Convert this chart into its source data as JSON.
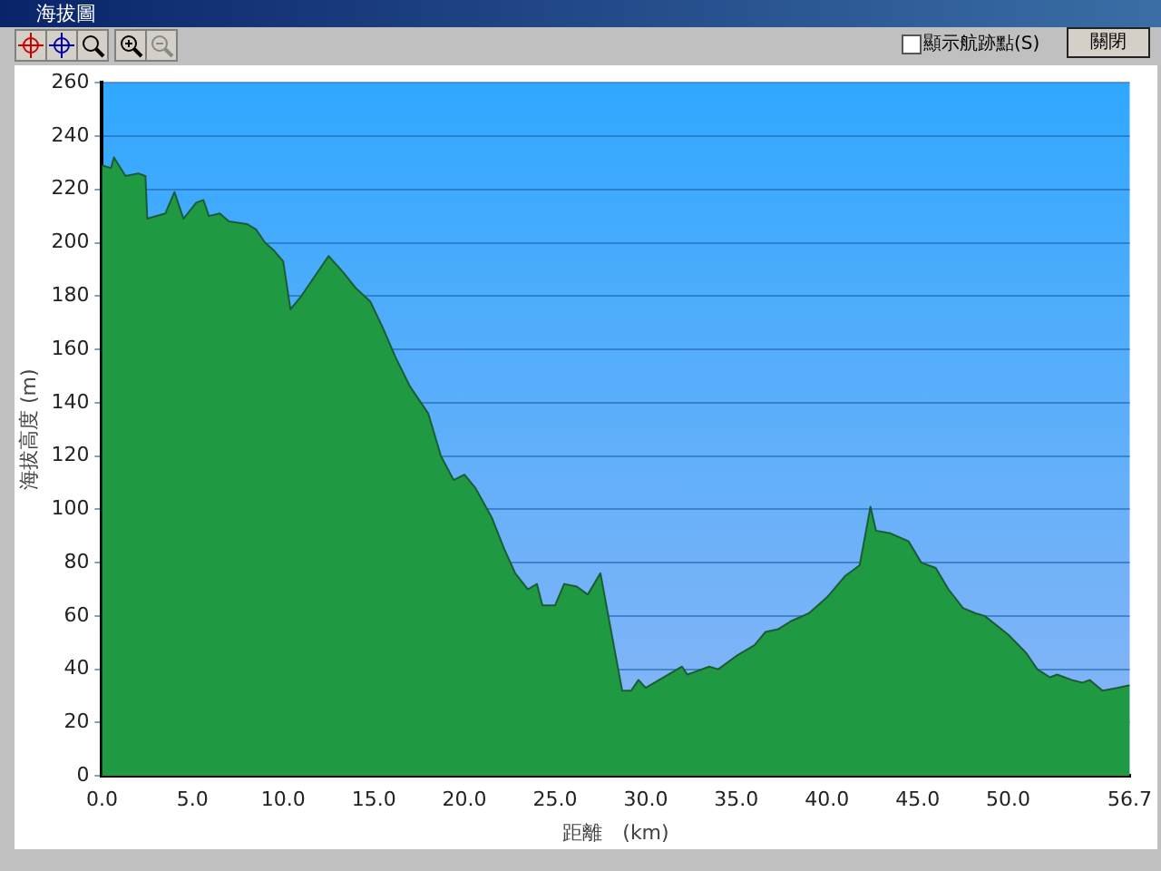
{
  "chart_data": {
    "type": "area",
    "title": "海拔圖",
    "xlabel": "距離　(km)",
    "ylabel": "海拔高度 (m)",
    "annotations": [
      "顯示航跡點(S)",
      "關閉"
    ],
    "x": [
      0,
      0.5,
      0.66,
      1.3,
      2.0,
      2.4,
      2.5,
      3.5,
      4.0,
      4.5,
      5.2,
      5.6,
      5.9,
      6.5,
      7.0,
      8.0,
      8.5,
      9.0,
      9.5,
      10.0,
      10.4,
      11.0,
      11.8,
      12.5,
      13.3,
      14.0,
      14.8,
      15.5,
      16.2,
      17.0,
      17.6,
      18.0,
      18.7,
      19.4,
      20.0,
      20.6,
      21.5,
      22.2,
      22.8,
      23.5,
      24.0,
      24.3,
      25.0,
      25.5,
      26.2,
      26.8,
      27.5,
      28.7,
      29.2,
      29.6,
      30.0,
      31.0,
      32.0,
      32.3,
      33.5,
      34.0,
      35.0,
      36.0,
      36.6,
      37.3,
      38.0,
      39.0,
      40.0,
      41.0,
      41.4,
      41.8,
      42.4,
      42.7,
      43.5,
      44.5,
      45.2,
      46.0,
      46.7,
      47.5,
      48.2,
      48.7,
      50.0,
      51.0,
      51.6,
      52.3,
      52.7,
      53.5,
      54.1,
      54.5,
      55.2,
      56.0,
      56.7
    ],
    "series": [
      {
        "color": "#1f9a42",
        "values": [
          229,
          228,
          232,
          225,
          226,
          225,
          209,
          211,
          219,
          209,
          215,
          216,
          210,
          211,
          208,
          207,
          205,
          200,
          197,
          193,
          175,
          180,
          188,
          195,
          189,
          183,
          178,
          168,
          157,
          146,
          140,
          136,
          120,
          111,
          113,
          108,
          97,
          85,
          76,
          70,
          72,
          64,
          64,
          72,
          71,
          68,
          76,
          32,
          32,
          36,
          33,
          37,
          41,
          38,
          41,
          40,
          45,
          49,
          54,
          55,
          58,
          61,
          67,
          75,
          77,
          79,
          101,
          92,
          91,
          88,
          80,
          78,
          70,
          63,
          61,
          60,
          53,
          46,
          40,
          37,
          38,
          36,
          35,
          36,
          32,
          33,
          34
        ]
      }
    ],
    "xlim": [
      0,
      56.7
    ],
    "xticks": [
      {
        "value": 0,
        "label": "0.0"
      },
      {
        "value": 5,
        "label": "5.0"
      },
      {
        "value": 10,
        "label": "10.0"
      },
      {
        "value": 15,
        "label": "15.0"
      },
      {
        "value": 20,
        "label": "20.0"
      },
      {
        "value": 25,
        "label": "25.0"
      },
      {
        "value": 30,
        "label": "30.0"
      },
      {
        "value": 35,
        "label": "35.0"
      },
      {
        "value": 40,
        "label": "40.0"
      },
      {
        "value": 45,
        "label": "45.0"
      },
      {
        "value": 50,
        "label": "50.0"
      },
      {
        "value": 56.7,
        "label": "56.7"
      }
    ],
    "ylim": [
      0,
      260
    ],
    "yticks": [
      0,
      20,
      40,
      60,
      80,
      100,
      120,
      140,
      160,
      180,
      200,
      220,
      240,
      260
    ],
    "grid": "y",
    "legend": false
  }
}
